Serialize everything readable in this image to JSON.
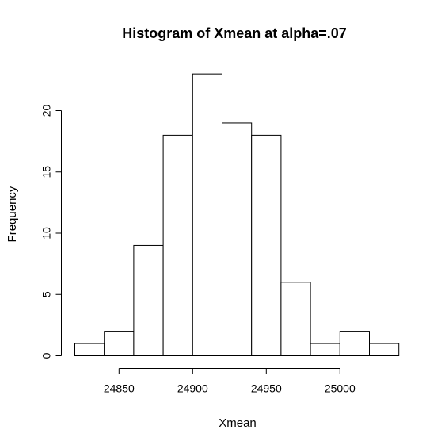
{
  "chart_data": {
    "type": "bar",
    "title": "Histogram of Xmean at alpha=.07",
    "xlabel": "Xmean",
    "ylabel": "Frequency",
    "bins": [
      {
        "x0": 24820,
        "x1": 24840,
        "count": 1
      },
      {
        "x0": 24840,
        "x1": 24860,
        "count": 2
      },
      {
        "x0": 24860,
        "x1": 24880,
        "count": 9
      },
      {
        "x0": 24880,
        "x1": 24900,
        "count": 18
      },
      {
        "x0": 24900,
        "x1": 24920,
        "count": 23
      },
      {
        "x0": 24920,
        "x1": 24940,
        "count": 19
      },
      {
        "x0": 24940,
        "x1": 24960,
        "count": 18
      },
      {
        "x0": 24960,
        "x1": 24980,
        "count": 6
      },
      {
        "x0": 24980,
        "x1": 25000,
        "count": 1
      },
      {
        "x0": 25000,
        "x1": 25020,
        "count": 2
      },
      {
        "x0": 25020,
        "x1": 25040,
        "count": 1
      }
    ],
    "x_ticks": [
      24850,
      24900,
      24950,
      25000
    ],
    "y_ticks": [
      0,
      5,
      10,
      15,
      20
    ],
    "xlim": [
      24820,
      25040
    ],
    "ylim": [
      0,
      23
    ],
    "grid": false,
    "legend": "none"
  }
}
